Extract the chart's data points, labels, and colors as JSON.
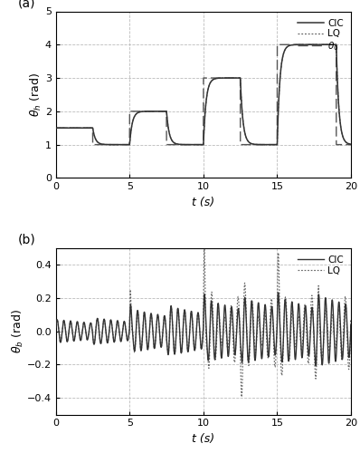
{
  "xlabel": "t (s)",
  "ylabel_a": "$\\theta_h$ (rad)",
  "ylabel_b": "$\\theta_b$ (rad)",
  "xlim": [
    0,
    20
  ],
  "ylim_a": [
    0,
    5
  ],
  "ylim_b": [
    -0.5,
    0.5
  ],
  "yticks_a": [
    0,
    1,
    2,
    3,
    4,
    5
  ],
  "yticks_b": [
    -0.4,
    -0.2,
    0,
    0.2,
    0.4
  ],
  "xticks": [
    0,
    5,
    10,
    15,
    20
  ],
  "grid_color": "#bbbbbb",
  "bg_color": "#ffffff",
  "legend_a": [
    "CIC",
    "LQ",
    "$\\theta_0$"
  ],
  "legend_b": [
    "CIC",
    "LQ"
  ],
  "label_a": "(a)",
  "label_b": "(b)"
}
